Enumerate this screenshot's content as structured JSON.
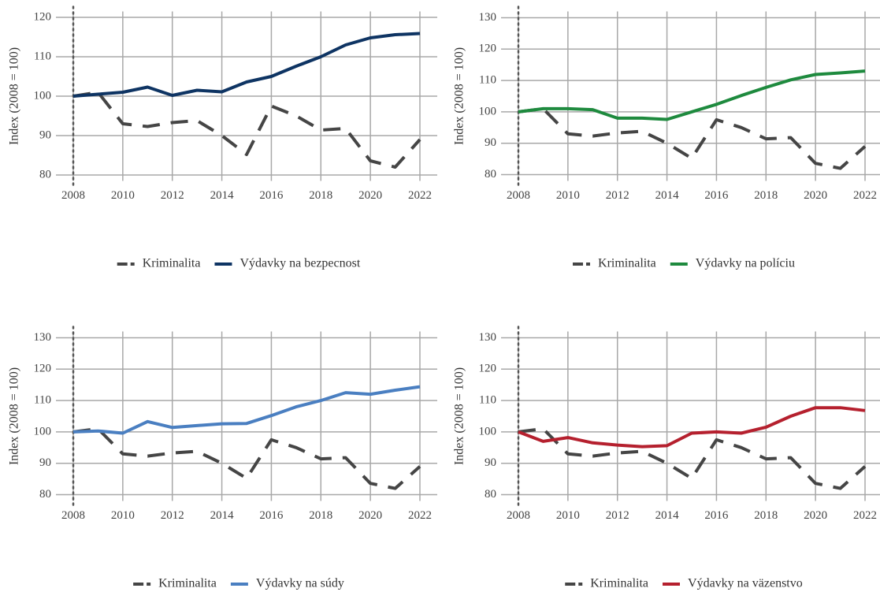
{
  "chart_data": [
    {
      "type": "line",
      "y_label": "Index (2008 = 100)",
      "x": [
        2008,
        2009,
        2010,
        2011,
        2012,
        2013,
        2014,
        2015,
        2016,
        2017,
        2018,
        2019,
        2020,
        2021,
        2022
      ],
      "xlim": [
        2007.3,
        2022.7
      ],
      "xticks": [
        2008,
        2010,
        2012,
        2014,
        2016,
        2018,
        2020,
        2022
      ],
      "ylim": [
        78.5,
        121.5
      ],
      "yticks": [
        80,
        90,
        100,
        110,
        120
      ],
      "grid": true,
      "vline": 2008,
      "legend": "bottom",
      "series": [
        {
          "name": "Kriminalita",
          "color": "#454545",
          "style": "dashed",
          "values": [
            100,
            101,
            93,
            92.3,
            93.3,
            93.8,
            90,
            85.2,
            97.5,
            95,
            91.4,
            91.8,
            83.6,
            82,
            89
          ]
        },
        {
          "name": "Výdavky na bezpecnost",
          "color": "#0e3463",
          "style": "solid",
          "values": [
            100,
            100.5,
            101,
            102.3,
            100.2,
            101.5,
            101.1,
            103.6,
            105,
            107.6,
            110,
            113,
            114.8,
            115.6,
            115.9
          ]
        }
      ]
    },
    {
      "type": "line",
      "y_label": "Index (2008 = 100)",
      "x": [
        2008,
        2009,
        2010,
        2011,
        2012,
        2013,
        2014,
        2015,
        2016,
        2017,
        2018,
        2019,
        2020,
        2021,
        2022
      ],
      "xlim": [
        2007.3,
        2022.7
      ],
      "xticks": [
        2008,
        2010,
        2012,
        2014,
        2016,
        2018,
        2020,
        2022
      ],
      "ylim": [
        78,
        132
      ],
      "yticks": [
        80,
        90,
        100,
        110,
        120,
        130
      ],
      "grid": true,
      "vline": 2008,
      "legend": "bottom",
      "series": [
        {
          "name": "Kriminalita",
          "color": "#454545",
          "style": "dashed",
          "values": [
            100,
            101,
            93,
            92.3,
            93.3,
            93.8,
            90,
            85.2,
            97.5,
            95,
            91.4,
            91.8,
            83.6,
            82,
            89
          ]
        },
        {
          "name": "Výdavky na políciu",
          "color": "#1e8a3e",
          "style": "solid",
          "values": [
            100,
            101,
            101,
            100.7,
            98,
            98,
            97.6,
            100,
            102.4,
            105.2,
            107.8,
            110.2,
            111.9,
            112.4,
            113
          ]
        }
      ]
    },
    {
      "type": "line",
      "y_label": "Index (2008 = 100)",
      "x": [
        2008,
        2009,
        2010,
        2011,
        2012,
        2013,
        2014,
        2015,
        2016,
        2017,
        2018,
        2019,
        2020,
        2021,
        2022
      ],
      "xlim": [
        2007.3,
        2022.7
      ],
      "xticks": [
        2008,
        2010,
        2012,
        2014,
        2016,
        2018,
        2020,
        2022
      ],
      "ylim": [
        78,
        132
      ],
      "yticks": [
        80,
        90,
        100,
        110,
        120,
        130
      ],
      "grid": true,
      "vline": 2008,
      "legend": "bottom",
      "series": [
        {
          "name": "Kriminalita",
          "color": "#454545",
          "style": "dashed",
          "values": [
            100,
            101,
            93,
            92.3,
            93.3,
            93.8,
            90,
            85.2,
            97.5,
            95,
            91.4,
            91.8,
            83.6,
            82,
            89
          ]
        },
        {
          "name": "Výdavky na súdy",
          "color": "#4a7fc1",
          "style": "solid",
          "values": [
            100,
            100.3,
            99.6,
            103.3,
            101.4,
            102,
            102.6,
            102.7,
            105.2,
            108,
            110,
            112.5,
            112,
            113.3,
            114.4
          ]
        }
      ]
    },
    {
      "type": "line",
      "y_label": "Index (2008 = 100)",
      "x": [
        2008,
        2009,
        2010,
        2011,
        2012,
        2013,
        2014,
        2015,
        2016,
        2017,
        2018,
        2019,
        2020,
        2021,
        2022
      ],
      "xlim": [
        2007.3,
        2022.7
      ],
      "xticks": [
        2008,
        2010,
        2012,
        2014,
        2016,
        2018,
        2020,
        2022
      ],
      "ylim": [
        78,
        132
      ],
      "yticks": [
        80,
        90,
        100,
        110,
        120,
        130
      ],
      "grid": true,
      "vline": 2008,
      "legend": "bottom",
      "series": [
        {
          "name": "Kriminalita",
          "color": "#454545",
          "style": "dashed",
          "values": [
            100,
            101,
            93,
            92.3,
            93.3,
            93.8,
            90,
            85.2,
            97.5,
            95,
            91.4,
            91.8,
            83.6,
            82,
            89
          ]
        },
        {
          "name": "Výdavky na väzenstvo",
          "color": "#b5202e",
          "style": "solid",
          "values": [
            100,
            97,
            98.2,
            96.5,
            95.8,
            95.3,
            95.6,
            99.6,
            100,
            99.6,
            101.5,
            105,
            107.7,
            107.7,
            106.8
          ]
        }
      ]
    }
  ]
}
